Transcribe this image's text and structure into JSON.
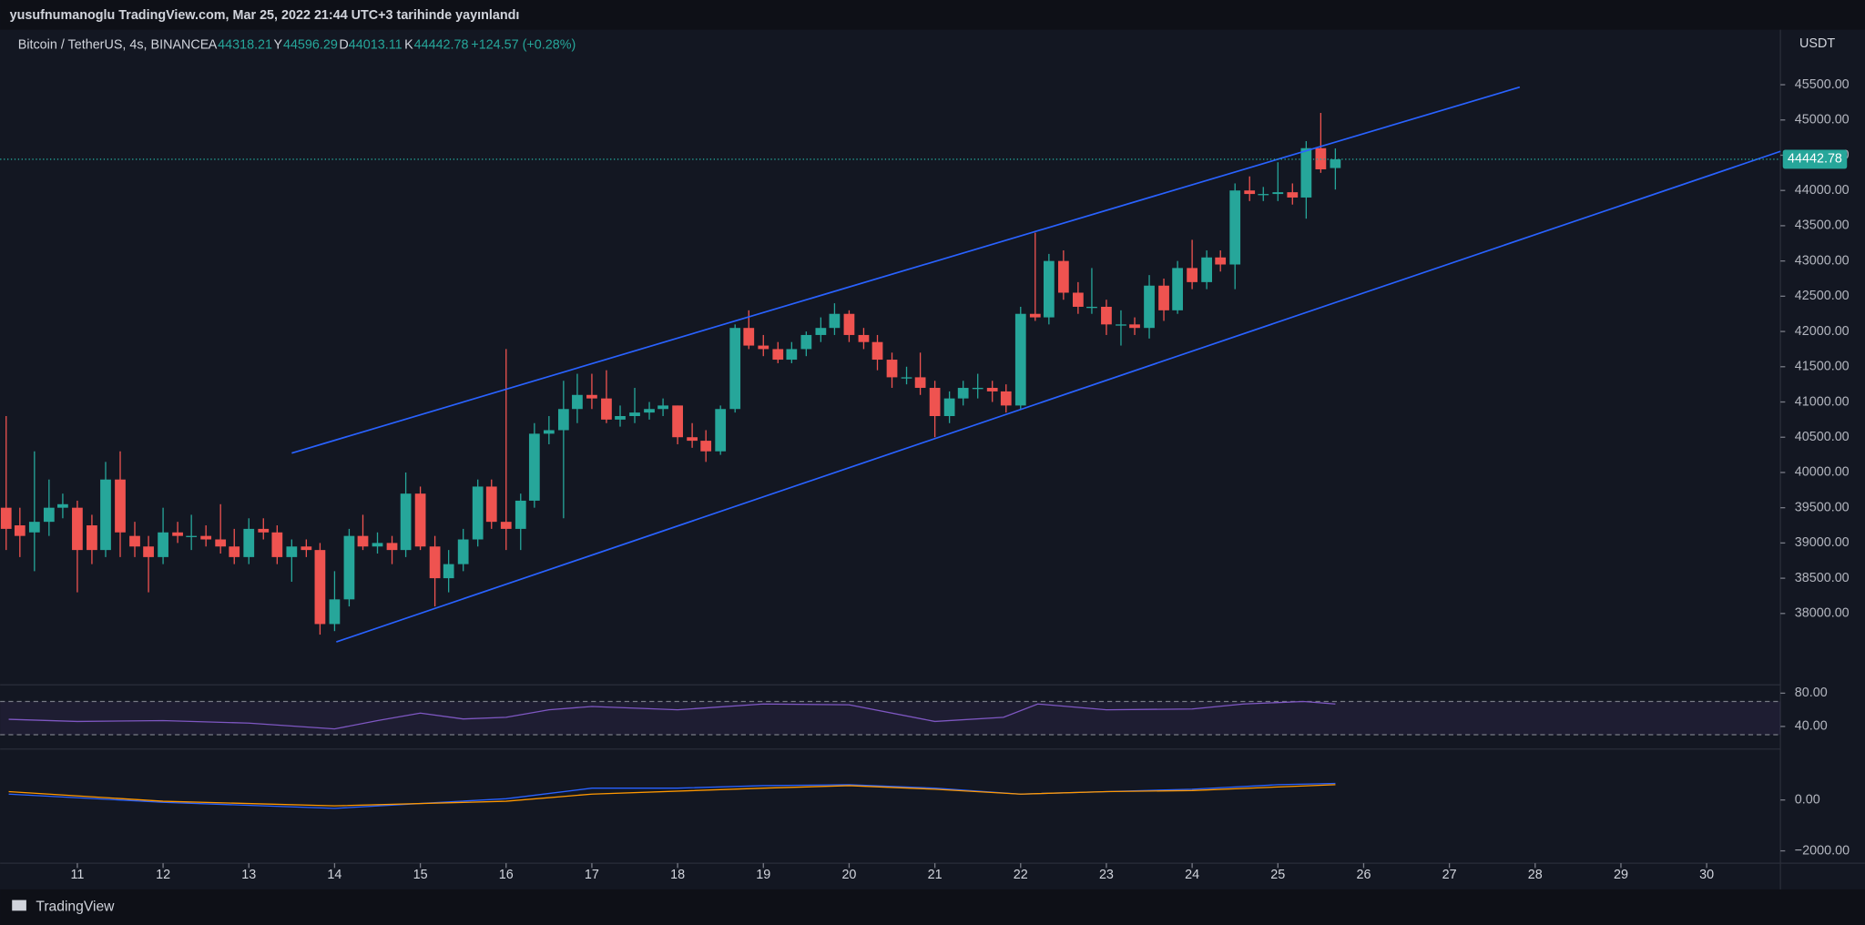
{
  "chart_data": {
    "type": "candlestick",
    "header": "yusufnumanoglu TradingView.com, Mar 25, 2022 21:44 UTC+3 tarihinde yayınlandı",
    "symbol": "Bitcoin / TetherUS, 4s, BINANCE",
    "legend": {
      "open_label": "A",
      "open": 44318.21,
      "high_label": "Y",
      "high": 44596.29,
      "low_label": "D",
      "low": 44013.11,
      "close_label": "K",
      "close": 44442.78,
      "change": "+124.57 (+0.28%)"
    },
    "currency": "USDT",
    "footer": "TradingView",
    "up_color": "#26a69a",
    "down_color": "#ef5350",
    "x": [
      10.17,
      10.33,
      10.5,
      10.67,
      10.83,
      11,
      11.17,
      11.33,
      11.5,
      11.67,
      11.83,
      12,
      12.17,
      12.33,
      12.5,
      12.67,
      12.83,
      13,
      13.17,
      13.33,
      13.5,
      13.67,
      13.83,
      14,
      14.17,
      14.33,
      14.5,
      14.67,
      14.83,
      15,
      15.17,
      15.33,
      15.5,
      15.67,
      15.83,
      16,
      16.17,
      16.33,
      16.5,
      16.67,
      16.83,
      17,
      17.17,
      17.33,
      17.5,
      17.67,
      17.83,
      18,
      18.17,
      18.33,
      18.5,
      18.67,
      18.83,
      19,
      19.17,
      19.33,
      19.5,
      19.67,
      19.83,
      20,
      20.17,
      20.33,
      20.5,
      20.67,
      20.83,
      21,
      21.17,
      21.33,
      21.5,
      21.67,
      21.83,
      22,
      22.17,
      22.33,
      22.5,
      22.67,
      22.83,
      23,
      23.17,
      23.33,
      23.5,
      23.67,
      23.83,
      24,
      24.17,
      24.33,
      24.5,
      24.67,
      24.83,
      25,
      25.17,
      25.33,
      25.5,
      25.67
    ],
    "open": [
      39500,
      39250,
      39150,
      39300,
      39500,
      39500,
      39250,
      38900,
      39900,
      39100,
      38950,
      38800,
      39150,
      39100,
      39100,
      39050,
      38950,
      38800,
      39200,
      39150,
      38800,
      38950,
      38900,
      37850,
      38200,
      39100,
      38950,
      39000,
      38900,
      39700,
      38950,
      38500,
      38700,
      39050,
      39800,
      39300,
      39200,
      39600,
      40550,
      40600,
      40900,
      41100,
      41050,
      40750,
      40800,
      40850,
      40900,
      40950,
      40500,
      40450,
      40300,
      40900,
      42050,
      41800,
      41750,
      41600,
      41750,
      41950,
      42050,
      42250,
      41950,
      41850,
      41600,
      41350,
      41350,
      41200,
      40800,
      41050,
      41200,
      41200,
      41150,
      40950,
      42250,
      42200,
      43000,
      42550,
      42350,
      42350,
      42100,
      42100,
      42050,
      42650,
      42300,
      42900,
      42700,
      43050,
      42950,
      44000,
      43950,
      43950,
      43975,
      43900,
      44600,
      44318.21
    ],
    "high": [
      40800,
      39500,
      40300,
      39900,
      39700,
      39600,
      39400,
      40150,
      40300,
      39300,
      39100,
      39500,
      39300,
      39400,
      39250,
      39550,
      39200,
      39350,
      39350,
      39250,
      39050,
      39050,
      39000,
      38600,
      39200,
      39400,
      39150,
      39100,
      40000,
      39800,
      39100,
      38900,
      39200,
      39900,
      39900,
      41750,
      39700,
      40700,
      40800,
      41300,
      41400,
      41400,
      41450,
      40950,
      41200,
      41000,
      41050,
      40950,
      40700,
      40600,
      40950,
      42100,
      42300,
      41950,
      41850,
      41850,
      42000,
      42200,
      42400,
      42300,
      42050,
      41950,
      41700,
      41500,
      41700,
      41300,
      41150,
      41300,
      41400,
      41300,
      41250,
      42350,
      43400,
      43100,
      43150,
      42700,
      42900,
      42450,
      42300,
      42200,
      42800,
      42750,
      43000,
      43300,
      43150,
      43150,
      44100,
      44200,
      44050,
      44400,
      44100,
      44700,
      45100,
      44596.29
    ],
    "low": [
      38900,
      38800,
      38600,
      39100,
      39350,
      38300,
      38700,
      38800,
      38800,
      38800,
      38300,
      38700,
      39000,
      38900,
      38950,
      38850,
      38700,
      38700,
      39050,
      38700,
      38450,
      38800,
      37700,
      37750,
      38100,
      38900,
      38850,
      38700,
      38800,
      38900,
      38100,
      38300,
      38600,
      38950,
      39200,
      38900,
      38900,
      39500,
      40400,
      39350,
      40700,
      40900,
      40700,
      40650,
      40700,
      40750,
      40800,
      40400,
      40350,
      40150,
      40250,
      40850,
      41750,
      41650,
      41550,
      41550,
      41650,
      41850,
      41950,
      41850,
      41750,
      41450,
      41200,
      41250,
      41100,
      40500,
      40700,
      40950,
      41050,
      41000,
      40850,
      40900,
      42150,
      42100,
      42450,
      42250,
      42250,
      41950,
      41800,
      41950,
      41900,
      42150,
      42250,
      42600,
      42600,
      42850,
      42600,
      43850,
      43850,
      43850,
      43800,
      43600,
      44250,
      44013.11
    ],
    "close": [
      39200,
      39100,
      39300,
      39500,
      39550,
      38900,
      38900,
      39900,
      39150,
      38950,
      38800,
      39150,
      39100,
      39100,
      39050,
      38950,
      38800,
      39200,
      39150,
      38800,
      38950,
      38900,
      37850,
      38200,
      39100,
      38950,
      39000,
      38900,
      39700,
      38950,
      38500,
      38700,
      39050,
      39800,
      39300,
      39200,
      39600,
      40550,
      40600,
      40900,
      41100,
      41050,
      40750,
      40800,
      40850,
      40900,
      40950,
      40500,
      40450,
      40300,
      40900,
      42050,
      41800,
      41750,
      41600,
      41750,
      41950,
      42050,
      42250,
      41950,
      41850,
      41600,
      41350,
      41350,
      41200,
      40800,
      41050,
      41200,
      41200,
      41150,
      40950,
      42250,
      42200,
      43000,
      42550,
      42350,
      42350,
      42100,
      42100,
      42050,
      42650,
      42300,
      42900,
      42700,
      43050,
      42950,
      44000,
      43950,
      43950,
      43975,
      43900,
      44600,
      44300,
      44442.78
    ],
    "trendlines": {
      "color": "#2962ff",
      "lines": [
        {
          "x": [
            13.5,
            27.82
          ],
          "values": [
            40275,
            45465
          ]
        },
        {
          "x": [
            14.02,
            30.86
          ],
          "values": [
            37596,
            44555
          ]
        }
      ]
    },
    "xlim": [
      10.1,
      30.86
    ],
    "xticks": [
      11,
      12,
      13,
      14,
      15,
      16,
      17,
      18,
      19,
      20,
      21,
      22,
      23,
      24,
      25,
      26,
      27,
      28,
      29,
      30
    ],
    "ylim": [
      37460,
      46280
    ],
    "yticks": [
      {
        "value": 38000,
        "label": "38000.00"
      },
      {
        "value": 38500,
        "label": "38500.00"
      },
      {
        "value": 39000,
        "label": "39000.00"
      },
      {
        "value": 39500,
        "label": "39500.00"
      },
      {
        "value": 40000,
        "label": "40000.00"
      },
      {
        "value": 40500,
        "label": "40500.00"
      },
      {
        "value": 41000,
        "label": "41000.00"
      },
      {
        "value": 41500,
        "label": "41500.00"
      },
      {
        "value": 42000,
        "label": "42000.00"
      },
      {
        "value": 42500,
        "label": "42500.00"
      },
      {
        "value": 43000,
        "label": "43000.00"
      },
      {
        "value": 43500,
        "label": "43500.00"
      },
      {
        "value": 44000,
        "label": "44000.00"
      },
      {
        "value": 44500,
        "label": "44500.00"
      },
      {
        "value": 45000,
        "label": "45000.00"
      },
      {
        "value": 45500,
        "label": "45500.00"
      }
    ],
    "rsi": {
      "color": "#7e57c2",
      "band": [
        30,
        70
      ],
      "ylim": [
        17.1,
        88.6
      ],
      "yticks": [
        {
          "value": 80,
          "label": "80.00"
        },
        {
          "value": 40,
          "label": "40.00"
        }
      ],
      "x": [
        10.2,
        11,
        12,
        13,
        14,
        14.5,
        15,
        15.5,
        16,
        16.5,
        17,
        18,
        19,
        20,
        21,
        21.8,
        22.2,
        23,
        24,
        24.6,
        25.3,
        25.67
      ],
      "values": [
        48.6,
        46,
        47,
        44,
        37,
        47,
        56,
        49,
        51,
        60,
        64,
        60,
        67,
        66,
        46,
        51,
        67,
        60,
        61,
        67,
        70,
        67
      ]
    },
    "macd": {
      "ylim": [
        -2437,
        1907
      ],
      "yticks": [
        {
          "value": 0,
          "label": "0.00"
        },
        {
          "value": -2000,
          "label": "−2000.00"
        }
      ],
      "series": [
        {
          "color": "#2962ff",
          "x": [
            10.2,
            12,
            14,
            15,
            16,
            17,
            18,
            19,
            20,
            21,
            22,
            23,
            24,
            25,
            25.67
          ],
          "values": [
            230,
            -90,
            -330,
            -140,
            50,
            465,
            465,
            560,
            600,
            465,
            230,
            330,
            420,
            600,
            650
          ]
        },
        {
          "color": "#ff9800",
          "x": [
            10.2,
            12,
            14,
            16,
            17,
            19,
            20,
            21,
            22,
            23,
            24,
            25,
            25.67
          ],
          "values": [
            330,
            -50,
            -230,
            -50,
            230,
            465,
            560,
            420,
            230,
            330,
            370,
            510,
            600
          ]
        }
      ]
    }
  }
}
